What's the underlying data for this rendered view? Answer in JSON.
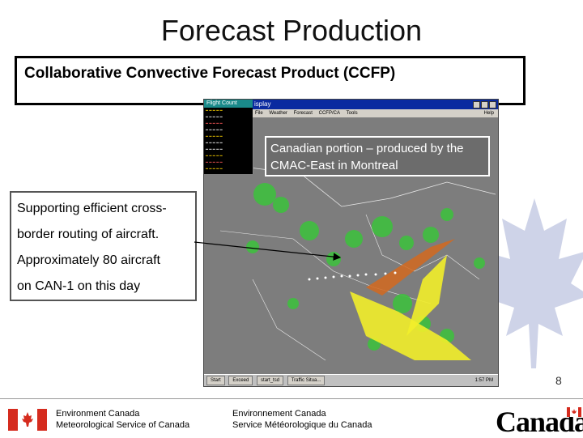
{
  "slide": {
    "title": "Forecast Production",
    "subtitle": "Collaborative Convective Forecast Product (CCFP)",
    "page_number": "8"
  },
  "callouts": {
    "canadian_portion": "Canadian portion – produced by the CMAC-East in Montreal",
    "supporting_lines": [
      "Supporting efficient cross-",
      "border routing of aircraft.",
      "Approximately 80 aircraft",
      "on CAN-1 on this day"
    ]
  },
  "screenshot": {
    "flight_panel_title": "Flight Count",
    "window_title": "isplay",
    "menu": [
      "File",
      "Weather",
      "Forecast",
      "CCFP/CA",
      "Tools",
      "Help"
    ],
    "taskbar": {
      "start": "Start",
      "buttons": [
        "Exceed",
        "start_tsd",
        "Traffic Situa..."
      ],
      "clock": "1:57 PM"
    }
  },
  "footer": {
    "dept_en": "Environment Canada",
    "service_en": "Meteorological Service of Canada",
    "dept_fr": "Environnement Canada",
    "service_fr": "Service Météorologique du Canada",
    "wordmark": "Canada"
  },
  "colors": {
    "flag_red": "#d52b1e",
    "map_background": "#7a7a7a",
    "radar_green": "#3fbf3f",
    "forecast_yellow": "#f2ee2a",
    "forecast_orange": "#d2691e"
  }
}
